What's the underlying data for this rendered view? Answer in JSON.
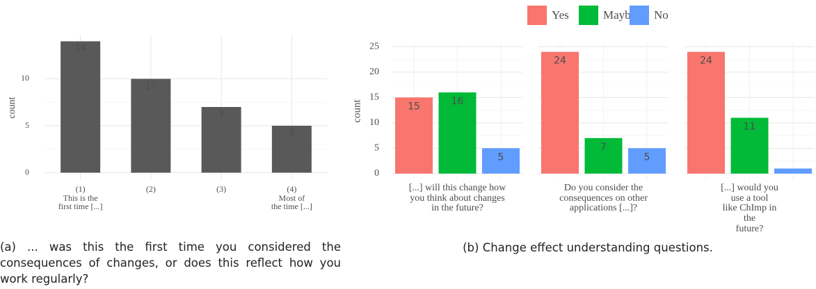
{
  "chart_data": [
    {
      "type": "bar",
      "y_label": "count",
      "categories": [
        "(1)\nThis is the\nfirst time [...]",
        "(2)",
        "(3)",
        "(4)\nMost of\nthe time [...]"
      ],
      "values": [
        14,
        10,
        7,
        5
      ],
      "color": "#595959",
      "ylim": [
        -0.7,
        14.7
      ],
      "yticks": [
        0,
        5,
        10
      ],
      "grid": true
    },
    {
      "type": "grouped_bar",
      "y_label": "count",
      "categories": [
        "[...] will this change how\nyou think about changes\nin the future?",
        "Do you consider the\nconsequences on other\napplications [...]?",
        "[...] would you use a tool\nlike ChImp in the\nfuture?"
      ],
      "series": [
        {
          "name": "Yes",
          "color": "#F8766D",
          "values": [
            15,
            24,
            24
          ]
        },
        {
          "name": "Maybe",
          "color": "#00BA38",
          "values": [
            16,
            7,
            11
          ]
        },
        {
          "name": "No",
          "color": "#619CFF",
          "values": [
            5,
            5,
            1
          ],
          "value_labels": [
            "5",
            "5",
            null
          ]
        }
      ],
      "ylim": [
        -1.25,
        26
      ],
      "yticks": [
        0,
        5,
        10,
        15,
        20,
        25
      ],
      "grid": true,
      "legend": "top"
    }
  ],
  "captions": [
    "(a) ... was this the first time you considered the consequences of changes, or does this reflect how you work regularly?",
    "(b) Change effect understanding questions."
  ]
}
